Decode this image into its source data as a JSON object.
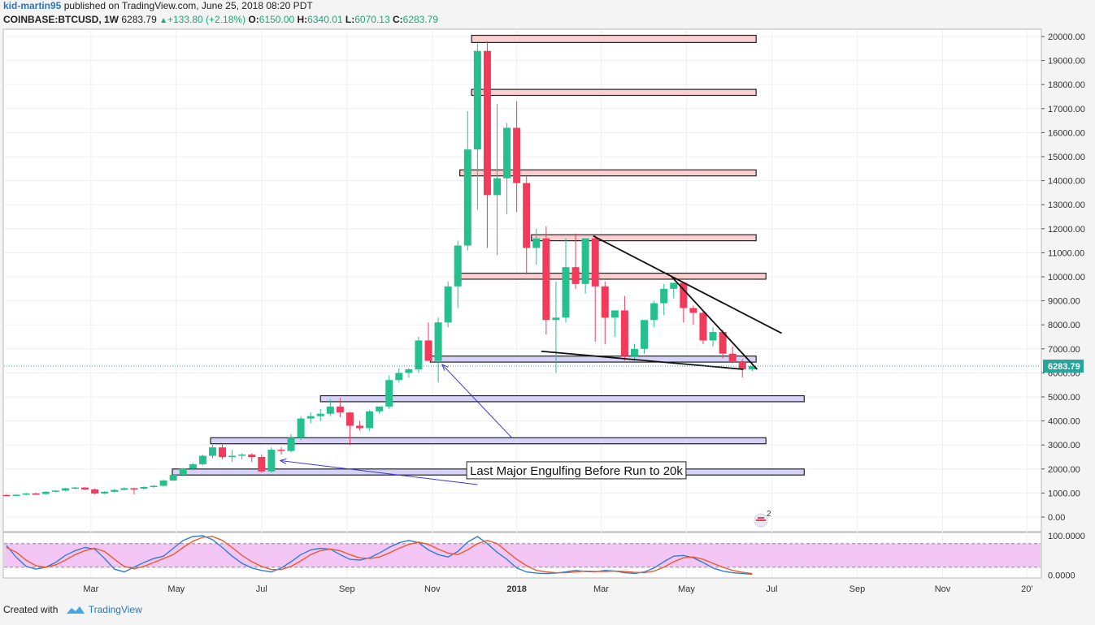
{
  "header": {
    "author": "kid-martin95",
    "published": "published on TradingView.com, June 25, 2018 08:20 PDT",
    "symbol": "COINBASE:BTCUSD, 1W",
    "last": "6283.79",
    "change": "+133.80 (+2.18%)",
    "o_label": "O:",
    "o_value": "6150.00",
    "h_label": "H:",
    "h_value": "6340.01",
    "l_label": "L:",
    "l_value": "6070.13",
    "c_label": "C:",
    "c_value": "6283.79"
  },
  "footer": {
    "created_with": "Created with",
    "brand": "TradingView"
  },
  "colors": {
    "up": "#26c08f",
    "down": "#f23a5b",
    "resistance_fill": "#fbcfcf",
    "support_fill": "#d7d2f7",
    "stoch_band": "#f3c6f5",
    "price_tag": "#26a69a",
    "arrow": "#3b34d8",
    "k_line": "#2f7fd6",
    "d_line": "#ef5a2a"
  },
  "chart_data": {
    "type": "candlestick",
    "price_axis": {
      "min": 0,
      "max": 20000,
      "ticks": [
        0,
        1000,
        2000,
        3000,
        4000,
        5000,
        6000,
        7000,
        8000,
        9000,
        10000,
        11000,
        12000,
        13000,
        14000,
        15000,
        16000,
        17000,
        18000,
        19000,
        20000
      ],
      "tick_labels": [
        "0.00",
        "1000.00",
        "2000.00",
        "3000.00",
        "4000.00",
        "5000.00",
        "6000.00",
        "7000.00",
        "8000.00",
        "9000.00",
        "10000.00",
        "11000.00",
        "12000.00",
        "13000.00",
        "14000.00",
        "15000.00",
        "16000.00",
        "17000.00",
        "18000.00",
        "19000.00",
        "20000.00"
      ]
    },
    "time_axis": {
      "labels": [
        "Mar",
        "May",
        "Jul",
        "Sep",
        "Nov",
        "2018",
        "Mar",
        "May",
        "Jul",
        "Sep",
        "Nov",
        "20'"
      ],
      "label_weeks": [
        8.6,
        17.3,
        26,
        34.7,
        43.4,
        52,
        60.6,
        69.3,
        78,
        86.7,
        95.4,
        104
      ]
    },
    "last_price_label": "6283.79",
    "last_price": 6283.79,
    "candles": [
      [
        0,
        920,
        950,
        880,
        900
      ],
      [
        1,
        900,
        940,
        870,
        930
      ],
      [
        2,
        930,
        1000,
        900,
        980
      ],
      [
        3,
        980,
        1010,
        940,
        960
      ],
      [
        4,
        960,
        1080,
        940,
        1050
      ],
      [
        5,
        1050,
        1120,
        1030,
        1100
      ],
      [
        6,
        1100,
        1220,
        1080,
        1200
      ],
      [
        7,
        1200,
        1260,
        1160,
        1230
      ],
      [
        8,
        1230,
        1240,
        1120,
        1150
      ],
      [
        9,
        1150,
        1180,
        940,
        980
      ],
      [
        10,
        980,
        1080,
        950,
        1050
      ],
      [
        11,
        1050,
        1170,
        1020,
        1130
      ],
      [
        12,
        1130,
        1240,
        1110,
        1200
      ],
      [
        13,
        1200,
        1220,
        950,
        1180
      ],
      [
        14,
        1180,
        1280,
        1150,
        1250
      ],
      [
        15,
        1250,
        1330,
        1220,
        1300
      ],
      [
        16,
        1300,
        1550,
        1280,
        1520
      ],
      [
        17,
        1520,
        1790,
        1500,
        1760
      ],
      [
        18,
        1760,
        2050,
        1700,
        2010
      ],
      [
        19,
        2010,
        2250,
        1950,
        2200
      ],
      [
        20,
        2200,
        2600,
        2150,
        2550
      ],
      [
        21,
        2550,
        3000,
        2450,
        2900
      ],
      [
        22,
        2900,
        3020,
        2400,
        2500
      ],
      [
        23,
        2500,
        2800,
        2300,
        2550
      ],
      [
        24,
        2550,
        2650,
        2400,
        2600
      ],
      [
        25,
        2600,
        2650,
        2300,
        2500
      ],
      [
        26,
        2500,
        2600,
        1850,
        1900
      ],
      [
        27,
        1900,
        2900,
        1850,
        2800
      ],
      [
        28,
        2800,
        2900,
        2600,
        2750
      ],
      [
        29,
        2750,
        3450,
        2700,
        3300
      ],
      [
        30,
        3300,
        4200,
        3200,
        4100
      ],
      [
        31,
        4100,
        4350,
        3900,
        4200
      ],
      [
        32,
        4200,
        4500,
        4000,
        4300
      ],
      [
        33,
        4300,
        4900,
        4200,
        4600
      ],
      [
        34,
        4600,
        4950,
        4150,
        4350
      ],
      [
        35,
        4350,
        4380,
        3000,
        3800
      ],
      [
        36,
        3800,
        4000,
        3600,
        3700
      ],
      [
        37,
        3700,
        4450,
        3600,
        4400
      ],
      [
        38,
        4400,
        4600,
        4300,
        4600
      ],
      [
        39,
        4600,
        5900,
        4500,
        5700
      ],
      [
        40,
        5700,
        6200,
        5600,
        6000
      ],
      [
        41,
        6000,
        6200,
        5800,
        6150
      ],
      [
        42,
        6150,
        7500,
        6000,
        7350
      ],
      [
        43,
        7350,
        8100,
        6600,
        6500
      ],
      [
        44,
        6500,
        8300,
        5600,
        8100
      ],
      [
        45,
        8100,
        9800,
        7900,
        9600
      ],
      [
        46,
        9600,
        11500,
        8700,
        11300
      ],
      [
        47,
        11300,
        16900,
        11100,
        15300
      ],
      [
        48,
        15300,
        19700,
        12800,
        19400
      ],
      [
        49,
        19400,
        19800,
        11200,
        13400
      ],
      [
        50,
        13400,
        17200,
        10900,
        14100
      ],
      [
        51,
        14100,
        16400,
        12600,
        16200
      ],
      [
        52,
        16200,
        17300,
        12700,
        13900
      ],
      [
        53,
        13900,
        14200,
        10100,
        11200
      ],
      [
        54,
        11200,
        12000,
        10500,
        11600
      ],
      [
        55,
        11600,
        12100,
        7600,
        8200
      ],
      [
        56,
        8200,
        9800,
        6000,
        8300
      ],
      [
        57,
        8300,
        11600,
        8100,
        10400
      ],
      [
        58,
        10400,
        11800,
        9500,
        9700
      ],
      [
        59,
        9700,
        11600,
        9300,
        11600
      ],
      [
        60,
        11600,
        11700,
        7300,
        9600
      ],
      [
        61,
        9600,
        9800,
        7200,
        8300
      ],
      [
        62,
        8300,
        8600,
        7500,
        8600
      ],
      [
        63,
        8600,
        9200,
        6500,
        6700
      ],
      [
        64,
        6700,
        7200,
        6500,
        7000
      ],
      [
        65,
        7000,
        8100,
        6800,
        8200
      ],
      [
        66,
        8200,
        9000,
        7900,
        8900
      ],
      [
        67,
        8900,
        9700,
        8400,
        9500
      ],
      [
        68,
        9500,
        9700,
        9100,
        9750
      ],
      [
        69,
        9750,
        9800,
        8100,
        8700
      ],
      [
        70,
        8700,
        8800,
        8000,
        8500
      ],
      [
        71,
        8500,
        8600,
        7200,
        7350
      ],
      [
        72,
        7350,
        7900,
        7100,
        7700
      ],
      [
        73,
        7700,
        7800,
        6600,
        6800
      ],
      [
        74,
        6800,
        7100,
        6400,
        6450
      ],
      [
        75,
        6450,
        6580,
        5800,
        6150
      ],
      [
        76,
        6150,
        6340.01,
        6070.13,
        6283.79
      ]
    ],
    "resistance_zones": [
      {
        "w0": 47.4,
        "w1": 76.4,
        "low": 19750,
        "high": 20050
      },
      {
        "w0": 47.4,
        "w1": 76.4,
        "low": 17550,
        "high": 17800
      },
      {
        "w0": 46.2,
        "w1": 76.4,
        "low": 14200,
        "high": 14450
      },
      {
        "w0": 53.5,
        "w1": 76.4,
        "low": 11500,
        "high": 11750
      },
      {
        "w0": 46.2,
        "w1": 77.4,
        "low": 9900,
        "high": 10150
      }
    ],
    "support_zones": [
      {
        "w0": 43.2,
        "w1": 76.4,
        "low": 6450,
        "high": 6700
      },
      {
        "w0": 32.0,
        "w1": 81.3,
        "low": 4800,
        "high": 5050
      },
      {
        "w0": 20.8,
        "w1": 77.4,
        "low": 3050,
        "high": 3300
      },
      {
        "w0": 16.9,
        "w1": 81.3,
        "low": 1750,
        "high": 2000
      }
    ],
    "trendlines": [
      {
        "w0": 59.8,
        "p0": 11700,
        "w1": 79.0,
        "p1": 7650
      },
      {
        "w0": 67.8,
        "p0": 10000,
        "w1": 76.5,
        "p1": 6150
      },
      {
        "w0": 54.5,
        "p0": 6900,
        "w1": 75.1,
        "p1": 6150
      }
    ],
    "annotation": {
      "text": "Last Major Engulfing Before Run to 20k",
      "w": 46.9,
      "price": 2300,
      "arrows": [
        {
          "from_w": 51.5,
          "from_p": 3300,
          "to_w": 44.4,
          "to_p": 6350
        },
        {
          "from_w": 48.0,
          "from_p": 1350,
          "to_w": 27.9,
          "to_p": 2350
        }
      ]
    },
    "stochastic": {
      "min": 0,
      "max": 100,
      "tick_labels": [
        "100.0000",
        "0.0000"
      ],
      "upper_band": 80,
      "lower_band": 20,
      "k": [
        75,
        45,
        22,
        15,
        20,
        32,
        50,
        62,
        70,
        66,
        42,
        15,
        8,
        20,
        32,
        42,
        48,
        68,
        88,
        98,
        100,
        90,
        70,
        48,
        30,
        18,
        12,
        8,
        18,
        34,
        52,
        64,
        68,
        66,
        52,
        40,
        38,
        44,
        56,
        70,
        82,
        88,
        82,
        64,
        52,
        46,
        60,
        84,
        98,
        80,
        58,
        40,
        18,
        8,
        5,
        4,
        5,
        8,
        12,
        9,
        8,
        12,
        10,
        6,
        4,
        8,
        18,
        34,
        48,
        50,
        44,
        32,
        18,
        10,
        6,
        4,
        2
      ],
      "d": [
        70,
        58,
        38,
        24,
        20,
        26,
        38,
        52,
        62,
        68,
        60,
        40,
        22,
        16,
        22,
        32,
        42,
        52,
        70,
        86,
        96,
        98,
        88,
        70,
        50,
        34,
        22,
        14,
        14,
        22,
        36,
        52,
        62,
        66,
        62,
        52,
        44,
        42,
        46,
        56,
        68,
        78,
        84,
        78,
        66,
        56,
        52,
        64,
        80,
        88,
        80,
        60,
        40,
        24,
        12,
        8,
        6,
        6,
        8,
        10,
        9,
        9,
        10,
        9,
        7,
        6,
        10,
        20,
        34,
        44,
        46,
        40,
        30,
        20,
        12,
        7,
        4
      ]
    }
  }
}
